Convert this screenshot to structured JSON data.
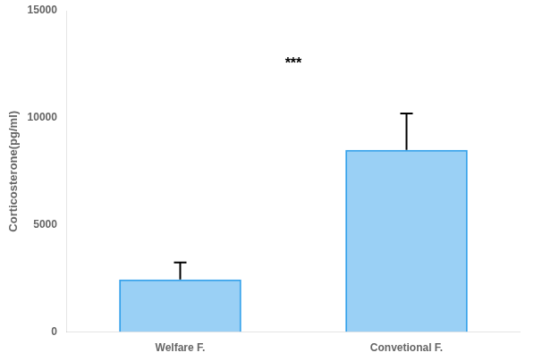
{
  "chart_data": {
    "type": "bar",
    "categories": [
      "Welfare F.",
      "Convetional F."
    ],
    "values": [
      2450,
      8500
    ],
    "errors_upper": [
      800,
      1700
    ],
    "ylabel": "Corticosterone(pg/ml)",
    "ylim": [
      0,
      15000
    ],
    "yticks": [
      0,
      5000,
      10000,
      15000
    ],
    "annotations": [
      {
        "text": "***",
        "y": 12500
      }
    ],
    "grid": false
  }
}
